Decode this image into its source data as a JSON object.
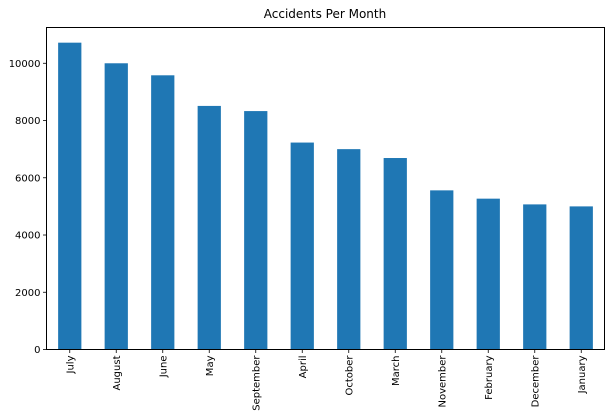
{
  "chart_data": {
    "type": "bar",
    "title": "Accidents Per Month",
    "xlabel": "",
    "ylabel": "",
    "categories": [
      "July",
      "August",
      "June",
      "May",
      "September",
      "April",
      "October",
      "March",
      "November",
      "February",
      "December",
      "January"
    ],
    "values": [
      10720,
      10000,
      9580,
      8510,
      8330,
      7230,
      7000,
      6690,
      5560,
      5270,
      5070,
      5000
    ],
    "ylim": [
      0,
      11250
    ],
    "yticks": [
      0,
      2000,
      4000,
      6000,
      8000,
      10000
    ],
    "ytick_labels": [
      "0",
      "2000",
      "4000",
      "6000",
      "8000",
      "10000"
    ],
    "grid": false,
    "legend": "none",
    "bar_color": "#1f77b4"
  }
}
